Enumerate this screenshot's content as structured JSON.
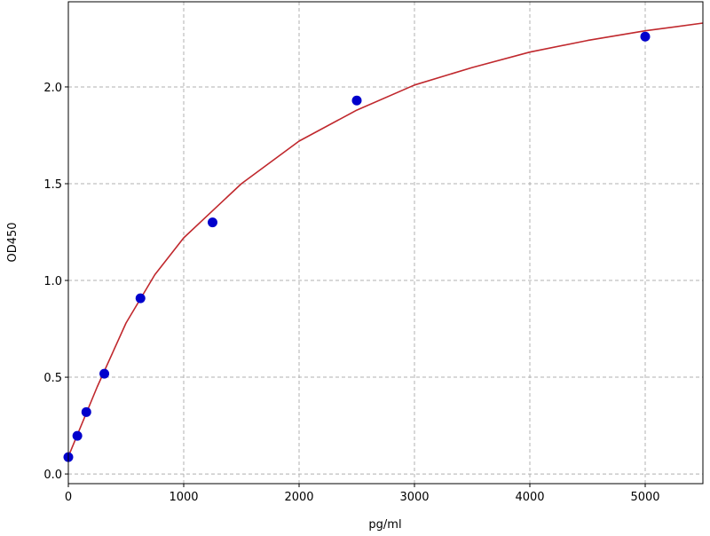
{
  "chart_data": {
    "type": "scatter",
    "title": "",
    "xlabel": "pg/ml",
    "ylabel": "OD450",
    "xlim": [
      0,
      5500
    ],
    "ylim": [
      -0.05,
      2.44
    ],
    "xticks": [
      "0",
      "1000",
      "2000",
      "3000",
      "4000",
      "5000"
    ],
    "yticks": [
      "0.0",
      "0.5",
      "1.0",
      "1.5",
      "2.0"
    ],
    "grid": true,
    "points": {
      "color": "#0000cc",
      "x": [
        0,
        78,
        156,
        312,
        625,
        1250,
        2500,
        5000
      ],
      "y": [
        0.087,
        0.197,
        0.32,
        0.518,
        0.908,
        1.3,
        1.93,
        2.26
      ]
    },
    "fit_curve": {
      "color": "#c0282d",
      "x": [
        0,
        250,
        500,
        750,
        1000,
        1500,
        2000,
        2500,
        3000,
        3500,
        4000,
        4500,
        5000,
        5500
      ],
      "y": [
        0.09,
        0.45,
        0.78,
        1.03,
        1.22,
        1.5,
        1.72,
        1.88,
        2.01,
        2.1,
        2.18,
        2.24,
        2.29,
        2.33
      ]
    }
  }
}
